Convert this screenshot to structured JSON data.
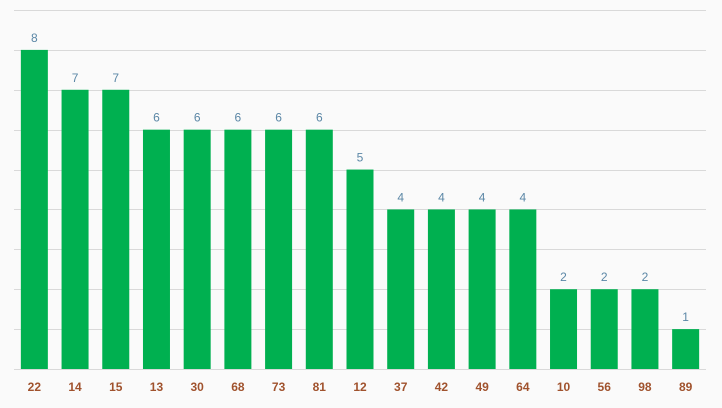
{
  "chart_data": {
    "type": "bar",
    "categories": [
      "22",
      "14",
      "15",
      "13",
      "30",
      "68",
      "73",
      "81",
      "12",
      "37",
      "42",
      "49",
      "64",
      "10",
      "56",
      "98",
      "89"
    ],
    "values": [
      8,
      7,
      7,
      6,
      6,
      6,
      6,
      6,
      5,
      4,
      4,
      4,
      4,
      2,
      2,
      2,
      1
    ],
    "title": "",
    "xlabel": "",
    "ylabel": "",
    "ylim": [
      0,
      9
    ],
    "grid": true,
    "legend": "none",
    "bar_color": "#00b050",
    "data_label_color": "#5b87a6",
    "tick_label_color": "#a0522d"
  }
}
